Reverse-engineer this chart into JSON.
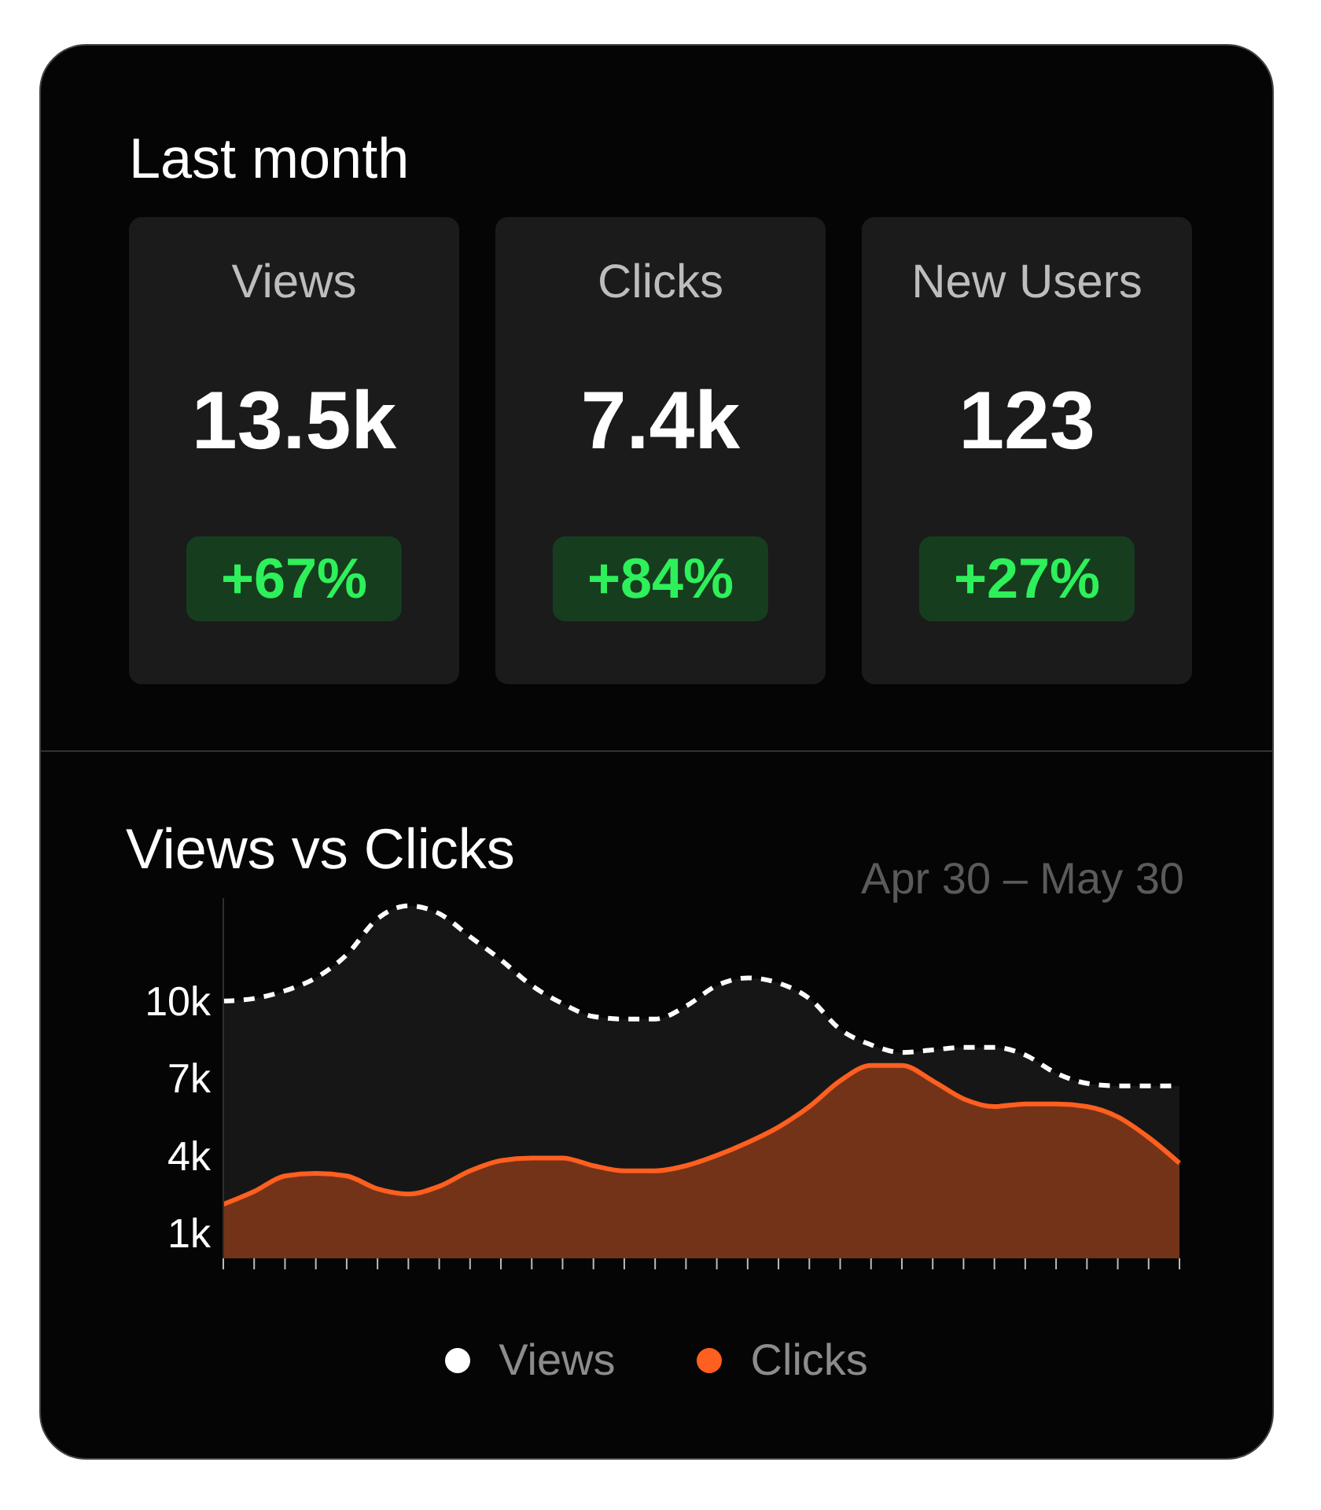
{
  "chart_data": [
    {
      "type": "other",
      "title": "Last month",
      "annotations": [
        "Views",
        "13.5k",
        "+67%",
        "Clicks",
        "7.4k",
        "+84%",
        "New Users",
        "123",
        "+27%"
      ]
    },
    {
      "type": "area",
      "title": "Views vs Clicks",
      "subtitle": "Apr 30 – May 30",
      "categories": [
        null,
        null,
        null,
        null,
        null,
        null,
        null,
        null,
        null,
        null,
        null,
        null,
        null,
        null,
        null,
        null,
        null,
        null,
        null,
        null,
        null,
        null,
        null,
        null,
        null,
        null,
        null,
        null,
        null,
        null,
        null,
        null
      ],
      "series": [
        {
          "name": "Views",
          "color": "#ffffff",
          "line_style": "dashed",
          "values": [
            10000,
            10100,
            10400,
            10900,
            11800,
            13200,
            13700,
            13400,
            12500,
            11600,
            10600,
            9900,
            9400,
            9300,
            9300,
            9800,
            10600,
            10900,
            10700,
            10100,
            8900,
            8300,
            8000,
            8100,
            8200,
            8200,
            7900,
            7200,
            6800,
            6700,
            6700,
            6700
          ]
        },
        {
          "name": "Clicks",
          "color": "#ff5f1f",
          "line_style": "solid",
          "values": [
            2100,
            2600,
            3200,
            3300,
            3200,
            2700,
            2500,
            2800,
            3400,
            3800,
            3900,
            3900,
            3600,
            3400,
            3400,
            3600,
            4000,
            4500,
            5100,
            5900,
            6900,
            7500,
            7500,
            6900,
            6200,
            5900,
            6000,
            6000,
            5900,
            5500,
            4700,
            3700
          ]
        }
      ],
      "ylim": [
        0,
        14000
      ],
      "yticks": [
        {
          "value": 1000,
          "label": "1k"
        },
        {
          "value": 4000,
          "label": "4k"
        },
        {
          "value": 7000,
          "label": "7k"
        },
        {
          "value": 10000,
          "label": "10k"
        }
      ],
      "grid": false,
      "legend": "bottom",
      "marker": "none",
      "tick_labels": "y"
    }
  ]
}
